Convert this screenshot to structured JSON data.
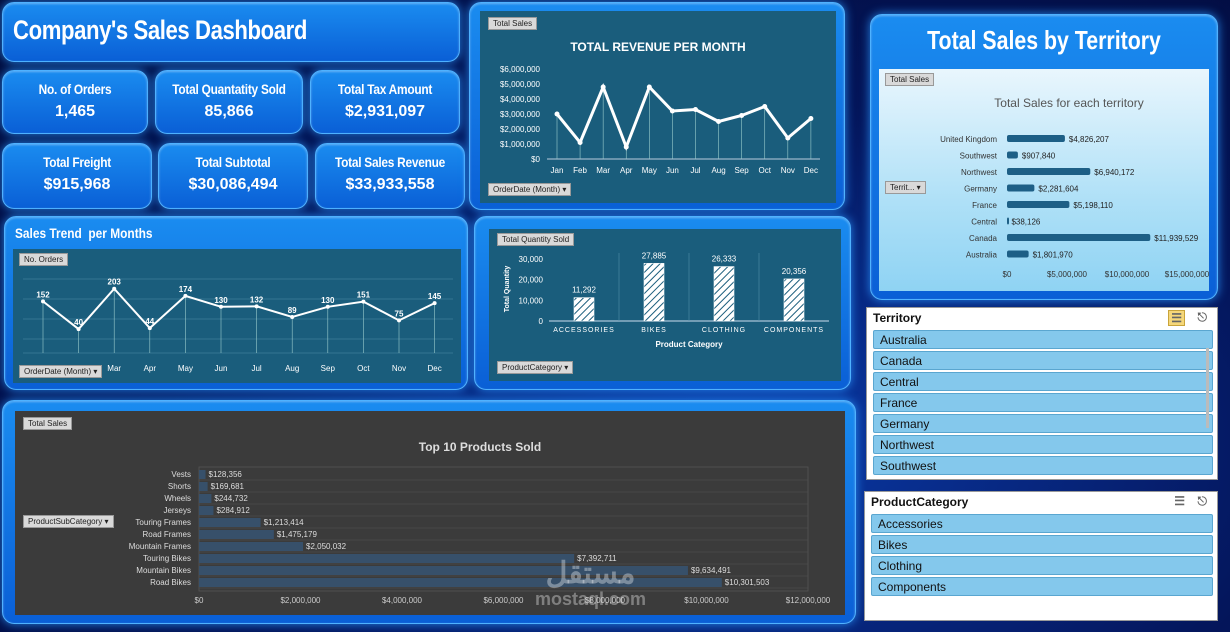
{
  "dashboard": {
    "title": "Company's Sales Dashboard"
  },
  "kpis": [
    {
      "label": "No. of Orders",
      "value": "1,465"
    },
    {
      "label": "Total Quantatity Sold",
      "value": "85,866"
    },
    {
      "label": "Total Tax Amount",
      "value": "$2,931,097"
    },
    {
      "label": "Total Freight",
      "value": "$915,968"
    },
    {
      "label": "Total Subtotal",
      "value": "$30,086,494"
    },
    {
      "label": "Total Sales Revenue",
      "value": "$33,933,558"
    }
  ],
  "revenue_chart": {
    "tag": "Total Sales",
    "filter": "OrderDate (Month)",
    "chart_data": {
      "type": "line",
      "title": "TOTAL REVENUE PER MONTH",
      "categories": [
        "Jan",
        "Feb",
        "Mar",
        "Apr",
        "May",
        "Jun",
        "Jul",
        "Aug",
        "Sep",
        "Oct",
        "Nov",
        "Dec"
      ],
      "values": [
        3000000,
        1100000,
        4800000,
        800000,
        4800000,
        3200000,
        3300000,
        2500000,
        2900000,
        3500000,
        1400000,
        2700000
      ],
      "y_ticks": [
        "$0",
        "$1,000,000",
        "$2,000,000",
        "$3,000,000",
        "$4,000,000",
        "$5,000,000",
        "$6,000,000"
      ],
      "ylim": [
        0,
        6000000
      ]
    }
  },
  "trend_chart": {
    "title": "Sales Trend  per Months",
    "tag": "No. Orders",
    "filter": "OrderDate (Month)",
    "chart_data": {
      "type": "line",
      "categories": [
        "Jan",
        "Feb",
        "Mar",
        "Apr",
        "May",
        "Jun",
        "Jul",
        "Aug",
        "Sep",
        "Oct",
        "Nov",
        "Dec"
      ],
      "values": [
        152,
        40,
        203,
        44,
        174,
        130,
        132,
        89,
        130,
        151,
        75,
        145
      ]
    }
  },
  "qty_chart": {
    "tag": "Total Quantity Sold",
    "filter": "ProductCategory",
    "chart_data": {
      "type": "bar",
      "categories": [
        "ACCESSORIES",
        "BIKES",
        "CLOTHING",
        "COMPONENTS"
      ],
      "values": [
        11292,
        27885,
        26333,
        20356
      ],
      "value_labels": [
        "11,292",
        "27,885",
        "26,333",
        "20,356"
      ],
      "xlabel": "Product Category",
      "ylabel": "Total Quantity",
      "y_ticks": [
        "0",
        "10,000",
        "20,000",
        "30,000"
      ],
      "ylim": [
        0,
        30000
      ]
    }
  },
  "territory_panel": {
    "title": "Total Sales by Territory",
    "tag": "Total Sales",
    "filter": "Territ...",
    "chart_data": {
      "type": "bar",
      "title": "Total Sales for each territory",
      "categories": [
        "United Kingdom",
        "Southwest",
        "Northwest",
        "Germany",
        "France",
        "Central",
        "Canada",
        "Australia"
      ],
      "values": [
        4826207,
        907840,
        6940172,
        2281604,
        5198110,
        38126,
        11939529,
        1801970
      ],
      "value_labels": [
        "$4,826,207",
        "$907,840",
        "$6,940,172",
        "$2,281,604",
        "$5,198,110",
        "$38,126",
        "$11,939,529",
        "$1,801,970"
      ],
      "x_ticks": [
        "$0",
        "$5,000,000",
        "$10,000,000",
        "$15,000,000"
      ],
      "xlim": [
        0,
        15000000
      ]
    }
  },
  "products_chart": {
    "tag": "Total Sales",
    "filter": "ProductSubCategory",
    "chart_data": {
      "type": "bar",
      "title": "Top 10 Products Sold",
      "categories": [
        "Vests",
        "Shorts",
        "Wheels",
        "Jerseys",
        "Touring Frames",
        "Road Frames",
        "Mountain Frames",
        "Touring Bikes",
        "Mountain Bikes",
        "Road Bikes"
      ],
      "values": [
        128356,
        169681,
        244732,
        284912,
        1213414,
        1475179,
        2050032,
        7392711,
        9634491,
        10301503
      ],
      "value_labels": [
        "$128,356",
        "$169,681",
        "$244,732",
        "$284,912",
        "$1,213,414",
        "$1,475,179",
        "$2,050,032",
        "$7,392,711",
        "$9,634,491",
        "$10,301,503"
      ],
      "x_ticks": [
        "$0",
        "$2,000,000",
        "$4,000,000",
        "$6,000,000",
        "$8,000,000",
        "$10,000,000",
        "$12,000,000"
      ],
      "xlim": [
        0,
        12000000
      ]
    }
  },
  "territory_slicer": {
    "header": "Territory",
    "items": [
      "Australia",
      "Canada",
      "Central",
      "France",
      "Germany",
      "Northwest",
      "Southwest"
    ]
  },
  "category_slicer": {
    "header": "ProductCategory",
    "items": [
      "Accessories",
      "Bikes",
      "Clothing",
      "Components"
    ]
  },
  "watermark": {
    "text": "mostaql.com",
    "arabic": "مستقل"
  }
}
